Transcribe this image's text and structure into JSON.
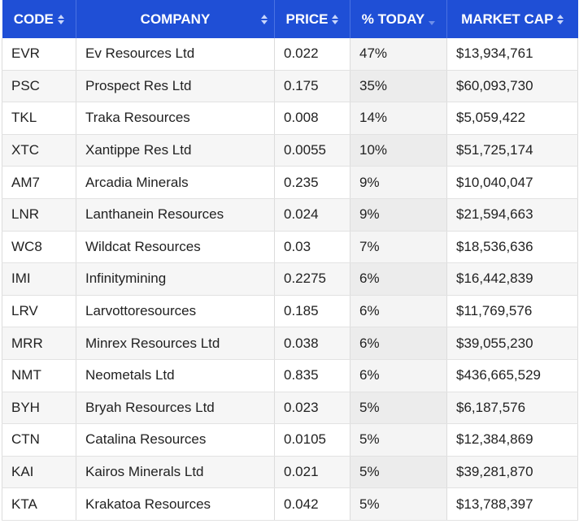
{
  "columns": {
    "code": "CODE",
    "company": "COMPANY",
    "price": "PRICE",
    "today": "% TODAY",
    "market_cap": "MARKET CAP"
  },
  "sort": {
    "column": "today",
    "direction": "descending"
  },
  "colors": {
    "header_bg": "#1f4fd6",
    "header_text": "#ffffff",
    "row_alt_bg": "#f6f6f6"
  },
  "rows": [
    {
      "code": "EVR",
      "company": "Ev Resources Ltd",
      "price": "0.022",
      "today": "47%",
      "market_cap": "$13,934,761"
    },
    {
      "code": "PSC",
      "company": "Prospect Res Ltd",
      "price": "0.175",
      "today": "35%",
      "market_cap": "$60,093,730"
    },
    {
      "code": "TKL",
      "company": "Traka Resources",
      "price": "0.008",
      "today": "14%",
      "market_cap": "$5,059,422"
    },
    {
      "code": "XTC",
      "company": "Xantippe Res Ltd",
      "price": "0.0055",
      "today": "10%",
      "market_cap": "$51,725,174"
    },
    {
      "code": "AM7",
      "company": "Arcadia Minerals",
      "price": "0.235",
      "today": "9%",
      "market_cap": "$10,040,047"
    },
    {
      "code": "LNR",
      "company": "Lanthanein Resources",
      "price": "0.024",
      "today": "9%",
      "market_cap": "$21,594,663"
    },
    {
      "code": "WC8",
      "company": "Wildcat Resources",
      "price": "0.03",
      "today": "7%",
      "market_cap": "$18,536,636"
    },
    {
      "code": "IMI",
      "company": "Infinitymining",
      "price": "0.2275",
      "today": "6%",
      "market_cap": "$16,442,839"
    },
    {
      "code": "LRV",
      "company": "Larvottoresources",
      "price": "0.185",
      "today": "6%",
      "market_cap": "$11,769,576"
    },
    {
      "code": "MRR",
      "company": "Minrex Resources Ltd",
      "price": "0.038",
      "today": "6%",
      "market_cap": "$39,055,230"
    },
    {
      "code": "NMT",
      "company": "Neometals Ltd",
      "price": "0.835",
      "today": "6%",
      "market_cap": "$436,665,529"
    },
    {
      "code": "BYH",
      "company": "Bryah Resources Ltd",
      "price": "0.023",
      "today": "5%",
      "market_cap": "$6,187,576"
    },
    {
      "code": "CTN",
      "company": "Catalina Resources",
      "price": "0.0105",
      "today": "5%",
      "market_cap": "$12,384,869"
    },
    {
      "code": "KAI",
      "company": "Kairos Minerals Ltd",
      "price": "0.021",
      "today": "5%",
      "market_cap": "$39,281,870"
    },
    {
      "code": "KTA",
      "company": "Krakatoa Resources",
      "price": "0.042",
      "today": "5%",
      "market_cap": "$13,788,397"
    }
  ]
}
